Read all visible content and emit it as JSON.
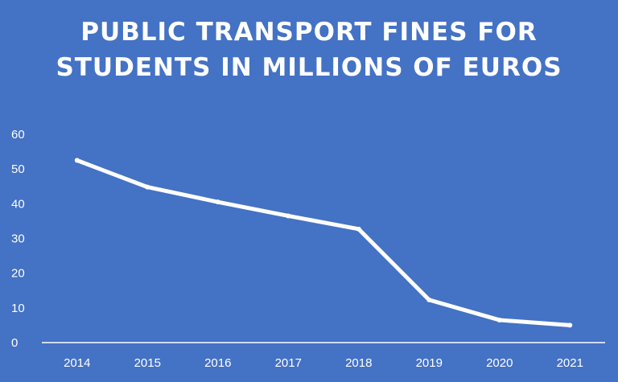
{
  "title_lines": [
    "PUBLIC TRANSPORT FINES FOR",
    "STUDENTS IN MILLIONS OF EUROS"
  ],
  "colors": {
    "background": "#4472c4",
    "line": "#ffffff",
    "text": "#ffffff"
  },
  "chart_data": {
    "type": "line",
    "title": "PUBLIC TRANSPORT FINES FOR STUDENTS IN MILLIONS OF EUROS",
    "categories": [
      "2014",
      "2015",
      "2016",
      "2017",
      "2018",
      "2019",
      "2020",
      "2021"
    ],
    "values": [
      52.5,
      44.8,
      40.5,
      36.5,
      32.7,
      12.3,
      6.5,
      5
    ],
    "ylim": [
      0,
      60
    ],
    "yticks": [
      0,
      10,
      20,
      30,
      40,
      50,
      60
    ],
    "grid": false,
    "drop_lines": true,
    "legend": "none",
    "xlabel": "",
    "ylabel": ""
  }
}
